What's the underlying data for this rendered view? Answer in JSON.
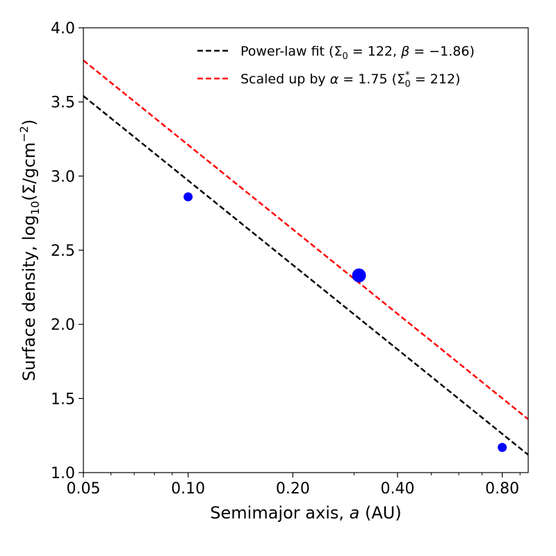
{
  "chart_data": {
    "type": "scatter",
    "xscale": "log",
    "xlim": [
      0.05,
      0.95
    ],
    "ylim": [
      1.0,
      4.0
    ],
    "xticks": [
      {
        "value": 0.05,
        "label": "0.05"
      },
      {
        "value": 0.1,
        "label": "0.10"
      },
      {
        "value": 0.2,
        "label": "0.20"
      },
      {
        "value": 0.4,
        "label": "0.40"
      },
      {
        "value": 0.8,
        "label": "0.80"
      }
    ],
    "yticks": [
      {
        "value": 1.0,
        "label": "1.0"
      },
      {
        "value": 1.5,
        "label": "1.5"
      },
      {
        "value": 2.0,
        "label": "2.0"
      },
      {
        "value": 2.5,
        "label": "2.5"
      },
      {
        "value": 3.0,
        "label": "3.0"
      },
      {
        "value": 3.5,
        "label": "3.5"
      },
      {
        "value": 4.0,
        "label": "4.0"
      }
    ],
    "xlabel": "Semimajor axis, a (AU)",
    "ylabel": "Surface density, log10(Σ/gcm−2)",
    "legend_position": "top-right",
    "grid": false,
    "points": [
      {
        "x": 0.1,
        "y": 2.86,
        "size": "small",
        "color": "#0000ff"
      },
      {
        "x": 0.31,
        "y": 2.33,
        "size": "large",
        "color": "#0000ff"
      },
      {
        "x": 0.8,
        "y": 1.17,
        "size": "small",
        "color": "#0000ff"
      }
    ],
    "lines": [
      {
        "name": "Power-law fit (Σ0 = 122, β = −1.86)",
        "color": "#000000",
        "style": "dashed",
        "x": [
          0.05,
          0.95
        ],
        "y": [
          3.54,
          1.12
        ]
      },
      {
        "name": "Scaled up by α = 1.75 (Σ0* = 212)",
        "color": "#ff0000",
        "style": "dashed",
        "x": [
          0.05,
          0.95
        ],
        "y": [
          3.78,
          1.36
        ]
      }
    ]
  }
}
